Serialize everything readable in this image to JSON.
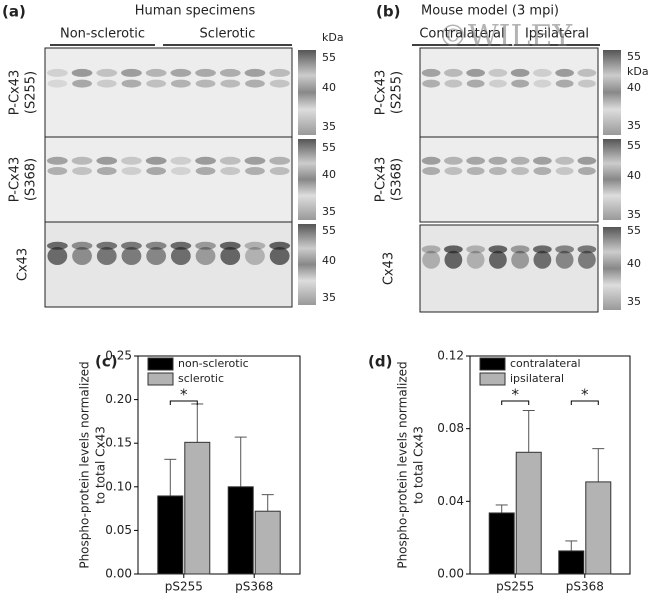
{
  "blots": [
    {
      "panel": "(a)",
      "title": "Human specimens",
      "groups": [
        "Non-sclerotic",
        "Sclerotic"
      ],
      "unit": "kDa",
      "rows": [
        {
          "label": [
            "P-Cx43",
            "(S255)"
          ],
          "markers": [
            55,
            40,
            35
          ]
        },
        {
          "label": [
            "P-Cx43",
            "(S368)"
          ],
          "markers": [
            55,
            40,
            35
          ]
        },
        {
          "label": [
            "Cx43"
          ],
          "markers": [
            55,
            40,
            35
          ]
        }
      ]
    },
    {
      "panel": "(b)",
      "title": "Mouse model (3 mpi)",
      "groups": [
        "Contralateral",
        "Ipsilateral"
      ],
      "unit": "kDa",
      "watermark": "©WILEY",
      "rows": [
        {
          "label": [
            "P-Cx43",
            "(S255)"
          ],
          "markers": [
            55,
            40,
            35
          ]
        },
        {
          "label": [
            "P-Cx43",
            "(S368)"
          ],
          "markers": [
            55,
            40,
            35
          ]
        },
        {
          "label": [
            "Cx43"
          ],
          "markers": [
            55,
            40,
            35
          ]
        }
      ]
    }
  ],
  "chart_data": [
    {
      "type": "bar",
      "panel": "(c)",
      "y_label": [
        "Phospho-protein levels normalized",
        "to total Cx43"
      ],
      "categories": [
        "pS255",
        "pS368"
      ],
      "series": [
        {
          "name": "non-sclerotic",
          "color": "#000000",
          "values": [
            0.0895,
            0.1
          ],
          "errors": [
            0.042,
            0.057
          ]
        },
        {
          "name": "sclerotic",
          "color": "#b3b3b3",
          "values": [
            0.151,
            0.072
          ],
          "errors": [
            0.044,
            0.019
          ]
        }
      ],
      "significance": [
        "*",
        null
      ],
      "ylim": [
        0,
        0.25
      ],
      "yticks": [
        {
          "value": 0,
          "label": "0.00"
        },
        {
          "value": 0.05,
          "label": "0.05"
        },
        {
          "value": 0.1,
          "label": "0.10"
        },
        {
          "value": 0.15,
          "label": "0.15"
        },
        {
          "value": 0.2,
          "label": "0.20"
        },
        {
          "value": 0.25,
          "label": "0.25"
        }
      ],
      "legend": "upper left"
    },
    {
      "type": "bar",
      "panel": "(d)",
      "y_label": [
        "Phospho-protein levels normalized",
        "to total Cx43"
      ],
      "categories": [
        "pS255",
        "pS368"
      ],
      "series": [
        {
          "name": "contralateral",
          "color": "#000000",
          "values": [
            0.0336,
            0.0127
          ],
          "errors": [
            0.0044,
            0.0055
          ]
        },
        {
          "name": "ipsilateral",
          "color": "#b3b3b3",
          "values": [
            0.067,
            0.0507
          ],
          "errors": [
            0.023,
            0.0183
          ]
        }
      ],
      "significance": [
        "*",
        "*"
      ],
      "ylim": [
        0,
        0.12
      ],
      "yticks": [
        {
          "value": 0,
          "label": "0.00"
        },
        {
          "value": 0.04,
          "label": "0.04"
        },
        {
          "value": 0.08,
          "label": "0.08"
        },
        {
          "value": 0.12,
          "label": "0.12"
        }
      ],
      "legend": "upper left"
    }
  ]
}
